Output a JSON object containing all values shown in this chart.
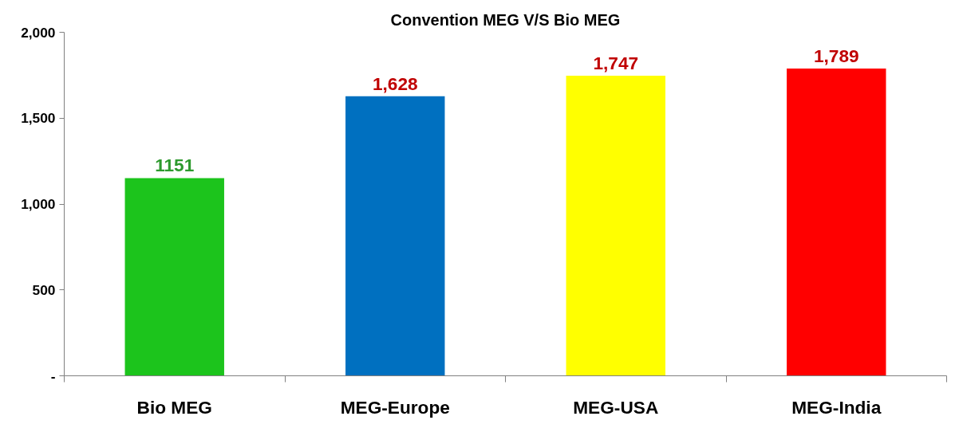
{
  "chart_data": {
    "type": "bar",
    "title": "Convention MEG V/S Bio MEG",
    "categories": [
      "Bio MEG",
      "MEG-Europe",
      "MEG-USA",
      "MEG-India"
    ],
    "values": [
      1151,
      1628,
      1747,
      1789
    ],
    "colors": [
      "#1cc41c",
      "#0070c0",
      "#ffff00",
      "#ff0000"
    ],
    "value_labels": [
      "1151",
      "1,628",
      "1,747",
      "1,789"
    ],
    "ylim": [
      0,
      2000
    ],
    "yticks": [
      {
        "value": 0,
        "label": "-"
      },
      {
        "value": 500,
        "label": "500"
      },
      {
        "value": 1000,
        "label": "1,000"
      },
      {
        "value": 1500,
        "label": "1,500"
      },
      {
        "value": 2000,
        "label": "2,000"
      }
    ],
    "grid": false
  }
}
